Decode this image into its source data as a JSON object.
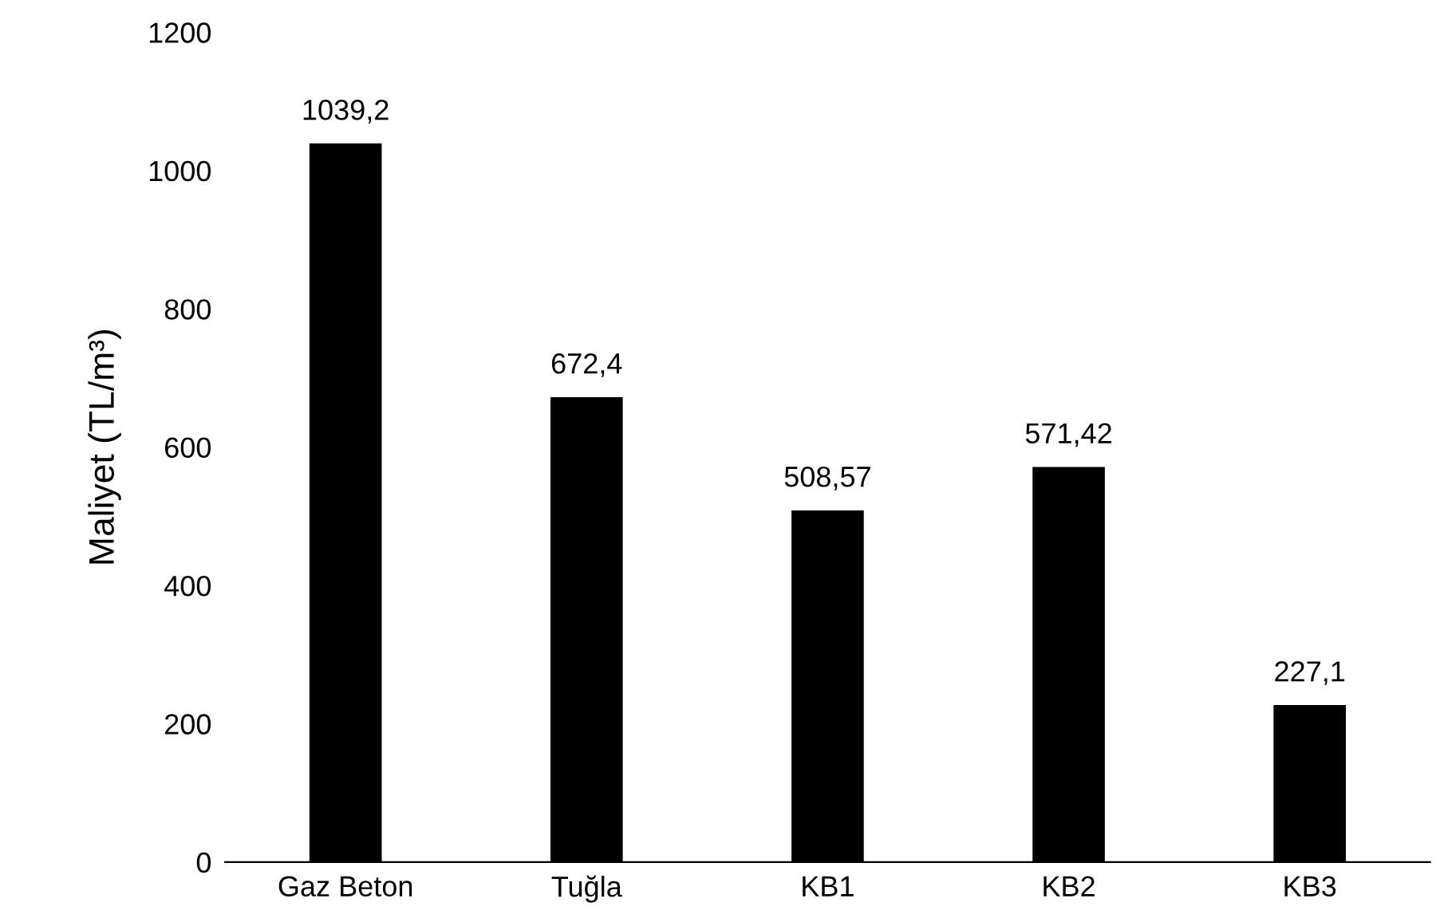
{
  "chart_data": {
    "type": "bar",
    "ylabel": "Maliyet (TL/m³)",
    "categories": [
      "Gaz Beton",
      "Tuğla",
      "KB1",
      "KB2",
      "KB3"
    ],
    "values": [
      1039.2,
      672.4,
      508.57,
      571.42,
      227.1
    ],
    "value_labels": [
      "1039,2",
      "672,4",
      "508,57",
      "571,42",
      "227,1"
    ],
    "color": "#000000",
    "ylim": [
      0,
      1200
    ],
    "yticks": [
      0,
      200,
      400,
      600,
      800,
      1000,
      1200
    ],
    "grid": false,
    "legend": false
  }
}
